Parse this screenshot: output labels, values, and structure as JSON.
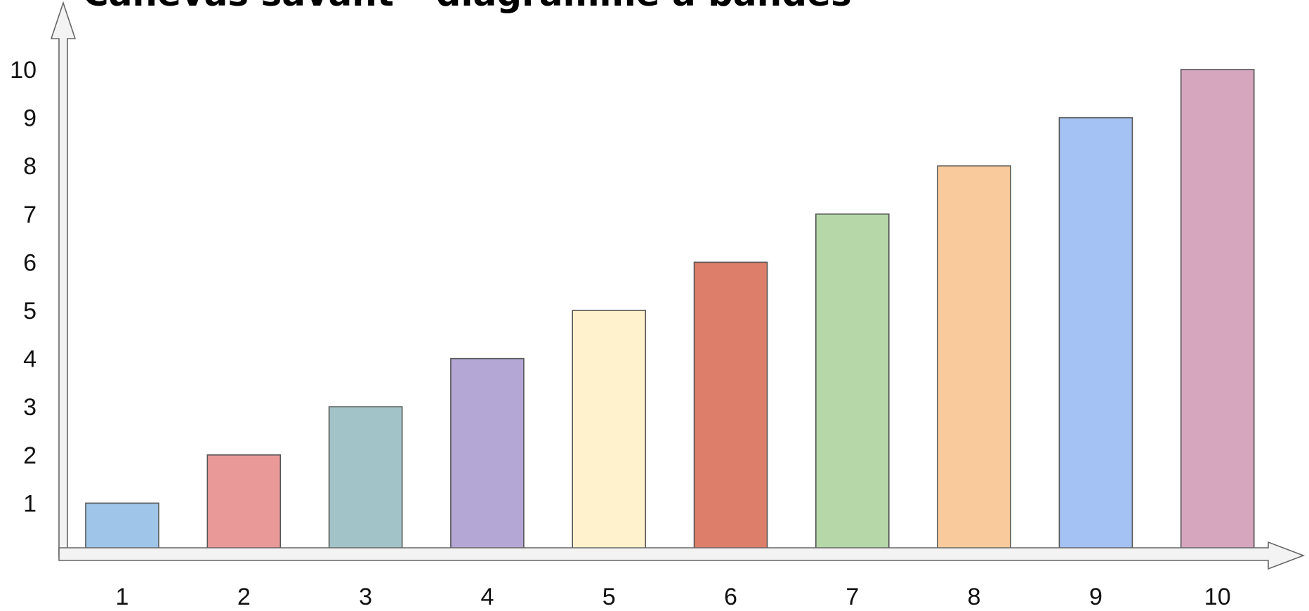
{
  "title": "Canevas savant – diagramme à bandes",
  "chart_data": {
    "type": "bar",
    "title": "Canevas savant – diagramme à bandes",
    "xlabel": "",
    "ylabel": "",
    "categories": [
      "1",
      "2",
      "3",
      "4",
      "5",
      "6",
      "7",
      "8",
      "9",
      "10"
    ],
    "values": [
      1,
      2,
      3,
      4,
      5,
      6,
      7,
      8,
      9,
      10
    ],
    "y_ticks": [
      "1",
      "2",
      "3",
      "4",
      "5",
      "6",
      "7",
      "8",
      "9",
      "10"
    ],
    "ylim": [
      0,
      11
    ],
    "grid": false,
    "legend": "none",
    "colors": [
      "#9fc5e8",
      "#ea9999",
      "#a2c4c9",
      "#b4a7d6",
      "#fff2cc",
      "#dd7e6b",
      "#b6d7a8",
      "#f9cb9c",
      "#a4c2f4",
      "#d5a6bd"
    ],
    "axis_color": "#f3f3f3",
    "axis_stroke": "#666666"
  }
}
